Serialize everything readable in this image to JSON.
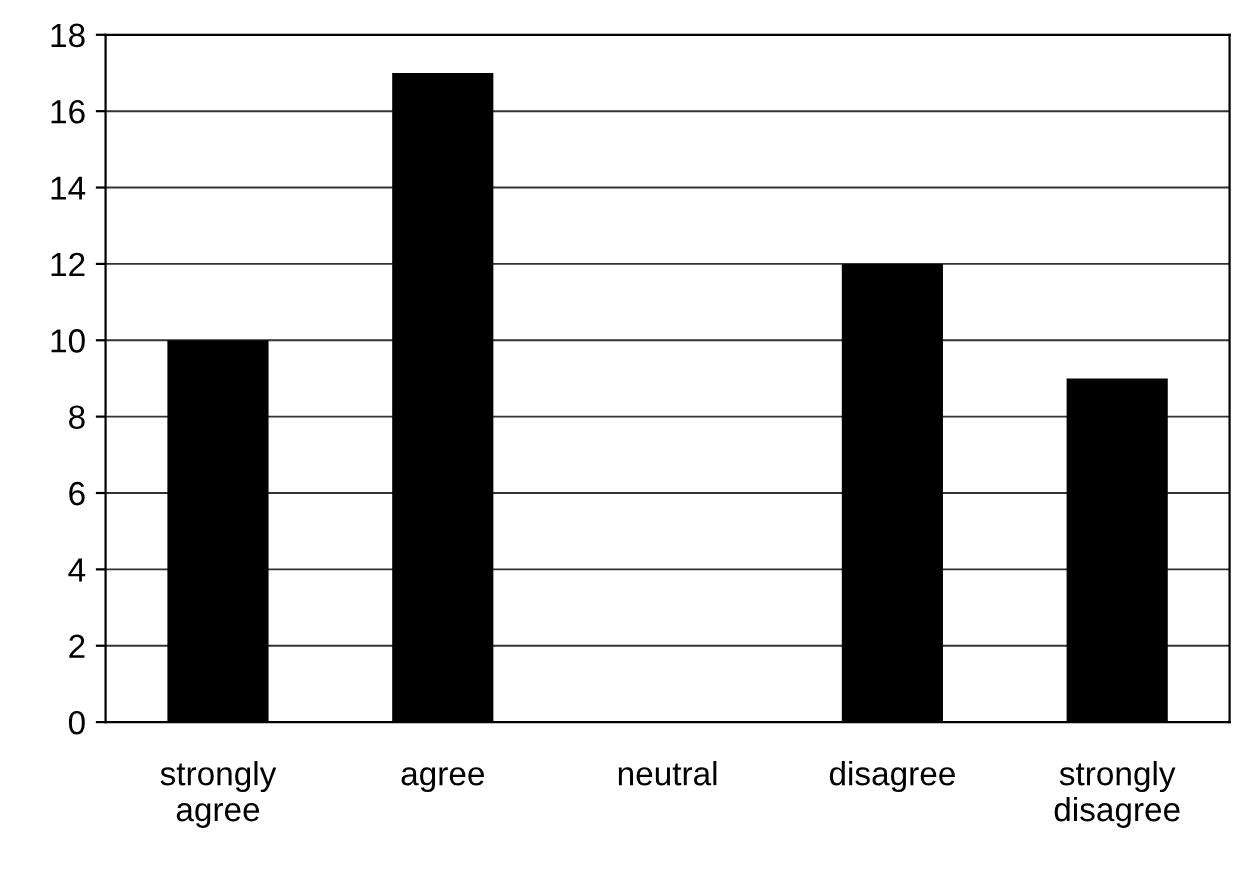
{
  "chart_data": {
    "type": "bar",
    "categories": [
      "strongly agree",
      "agree",
      "neutral",
      "disagree",
      "strongly disagree"
    ],
    "values": [
      10,
      17,
      0,
      12,
      9
    ],
    "color": "#000000",
    "ylim": [
      0,
      18
    ],
    "yticks": [
      0,
      2,
      4,
      6,
      8,
      10,
      12,
      14,
      16,
      18
    ],
    "grid": "y",
    "legend": false
  }
}
